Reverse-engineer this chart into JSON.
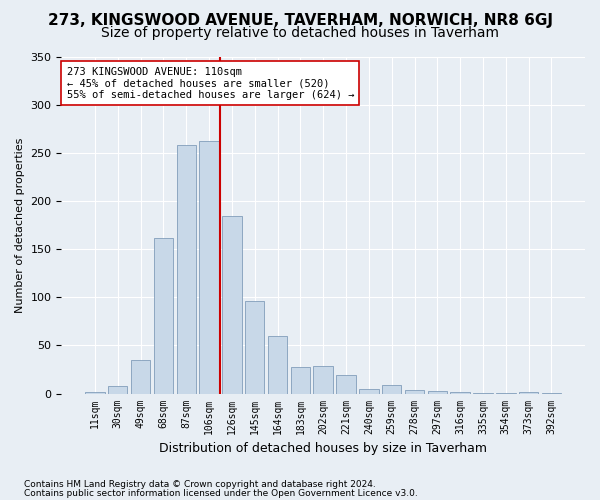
{
  "title": "273, KINGSWOOD AVENUE, TAVERHAM, NORWICH, NR8 6GJ",
  "subtitle": "Size of property relative to detached houses in Taverham",
  "xlabel": "Distribution of detached houses by size in Taverham",
  "ylabel": "Number of detached properties",
  "footnote1": "Contains HM Land Registry data © Crown copyright and database right 2024.",
  "footnote2": "Contains public sector information licensed under the Open Government Licence v3.0.",
  "bar_labels": [
    "11sqm",
    "30sqm",
    "49sqm",
    "68sqm",
    "87sqm",
    "106sqm",
    "126sqm",
    "145sqm",
    "164sqm",
    "183sqm",
    "202sqm",
    "221sqm",
    "240sqm",
    "259sqm",
    "278sqm",
    "297sqm",
    "316sqm",
    "335sqm",
    "354sqm",
    "373sqm",
    "392sqm"
  ],
  "bar_values": [
    2,
    8,
    35,
    162,
    258,
    262,
    184,
    96,
    60,
    28,
    29,
    19,
    5,
    9,
    4,
    3,
    2,
    1,
    1,
    2,
    1
  ],
  "bar_color": "#c8d8e8",
  "bar_edge_color": "#7090b0",
  "vline_x": 5.5,
  "vline_color": "#cc0000",
  "annotation_line1": "273 KINGSWOOD AVENUE: 110sqm",
  "annotation_line2": "← 45% of detached houses are smaller (520)",
  "annotation_line3": "55% of semi-detached houses are larger (624) →",
  "annotation_box_color": "#ffffff",
  "annotation_box_edge": "#cc0000",
  "ylim": [
    0,
    350
  ],
  "yticks": [
    0,
    50,
    100,
    150,
    200,
    250,
    300,
    350
  ],
  "background_color": "#e8eef4",
  "grid_color": "#ffffff",
  "title_fontsize": 11,
  "subtitle_fontsize": 10,
  "footnote_fontsize": 6.5
}
